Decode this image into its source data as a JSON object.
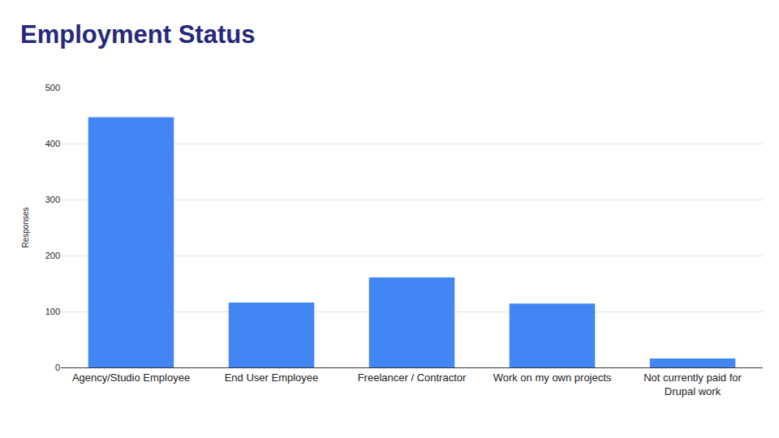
{
  "chart_data": {
    "type": "bar",
    "title": "Employment Status",
    "y_label": "Responses",
    "categories": [
      "Agency/Studio Employee",
      "End User Employee",
      "Freelancer / Contractor",
      "Work on my own projects",
      "Not currently paid for Drupal work"
    ],
    "values": [
      447,
      116,
      161,
      114,
      16
    ],
    "color": "#4285f4",
    "ylim": [
      0,
      500
    ],
    "yticks": [
      0,
      100,
      200,
      300,
      400,
      500
    ],
    "grid": true
  }
}
